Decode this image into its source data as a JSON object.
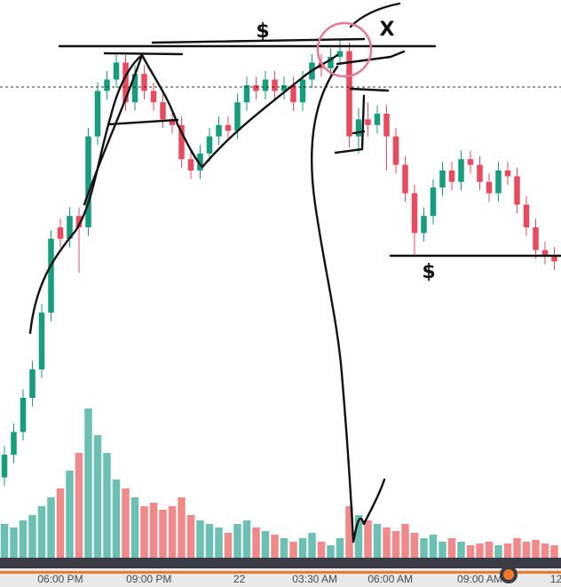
{
  "chart_data": {
    "type": "candlestick",
    "categories": [
      null,
      null,
      null,
      null,
      null,
      null,
      null,
      null,
      null,
      null,
      null,
      null,
      null,
      null,
      null,
      null,
      null,
      null,
      null,
      null,
      null,
      null,
      null,
      null,
      null,
      null,
      null,
      null,
      null,
      null,
      null,
      null,
      null,
      null,
      null,
      null,
      null,
      null,
      null,
      null,
      null,
      null,
      null,
      null,
      null,
      null,
      null,
      null,
      null,
      null,
      null,
      null,
      null,
      null,
      null,
      null,
      null,
      null,
      null,
      null
    ],
    "ohlc": [
      [
        16,
        21.5,
        14.5,
        20
      ],
      [
        20,
        25.5,
        18.5,
        24
      ],
      [
        24,
        31.5,
        22.5,
        30
      ],
      [
        30,
        36.5,
        28.5,
        35
      ],
      [
        35,
        46.5,
        33.5,
        45
      ],
      [
        45,
        59.5,
        43.5,
        58
      ],
      [
        60,
        61.5,
        56.5,
        58
      ],
      [
        58,
        63.5,
        56.5,
        62
      ],
      [
        62,
        63.5,
        52,
        60
      ],
      [
        60,
        77.5,
        58.5,
        76
      ],
      [
        76,
        85.5,
        74.5,
        84
      ],
      [
        84,
        87.5,
        82.5,
        86
      ],
      [
        86,
        90.5,
        84.5,
        89
      ],
      [
        89,
        90.5,
        80.5,
        82
      ],
      [
        82,
        88.5,
        80.5,
        87
      ],
      [
        87,
        88.5,
        82.5,
        84
      ],
      [
        84,
        85.5,
        80.5,
        82
      ],
      [
        82,
        83.5,
        77.5,
        79
      ],
      [
        79,
        80.5,
        76.5,
        78
      ],
      [
        78,
        79.5,
        70.5,
        72
      ],
      [
        72,
        73.5,
        68.5,
        70
      ],
      [
        70,
        74.5,
        68.5,
        73
      ],
      [
        73,
        77.5,
        71.5,
        76
      ],
      [
        76,
        79.5,
        74.5,
        78
      ],
      [
        78,
        79.5,
        75.5,
        77
      ],
      [
        77,
        83.5,
        75.5,
        82
      ],
      [
        82,
        86.5,
        80.5,
        85
      ],
      [
        85,
        86.5,
        82.5,
        84
      ],
      [
        84,
        87.5,
        82.5,
        86
      ],
      [
        86,
        87.5,
        82.5,
        84
      ],
      [
        84,
        86.5,
        82.5,
        85
      ],
      [
        85,
        86.5,
        80.5,
        82
      ],
      [
        82,
        87.5,
        80.5,
        86
      ],
      [
        86,
        90.5,
        84.5,
        89
      ],
      [
        89,
        90.5,
        86.5,
        88
      ],
      [
        88,
        91.5,
        86.5,
        90
      ],
      [
        90,
        93,
        88.5,
        91
      ],
      [
        91,
        92.5,
        74,
        76
      ],
      [
        76,
        81,
        73,
        79
      ],
      [
        79,
        82,
        76,
        78
      ],
      [
        78,
        81.5,
        76.5,
        80
      ],
      [
        80,
        81.5,
        70,
        76
      ],
      [
        76,
        77.5,
        69.5,
        71
      ],
      [
        71,
        72.5,
        64.5,
        66
      ],
      [
        66,
        67.5,
        55,
        59
      ],
      [
        59,
        63.5,
        57.5,
        62
      ],
      [
        62,
        68.5,
        60.5,
        67
      ],
      [
        67,
        71.5,
        65.5,
        70
      ],
      [
        70,
        71.5,
        66.5,
        68
      ],
      [
        68,
        73.5,
        66.5,
        72
      ],
      [
        72,
        73.5,
        69.5,
        71
      ],
      [
        71,
        72.5,
        66.5,
        68
      ],
      [
        68,
        69.5,
        64.5,
        66
      ],
      [
        66,
        71.5,
        64.5,
        70
      ],
      [
        70,
        71.5,
        67.5,
        69
      ],
      [
        69,
        70.5,
        62.5,
        64
      ],
      [
        64,
        65.5,
        58.5,
        60
      ],
      [
        60,
        61.5,
        54.5,
        56
      ],
      [
        56,
        57.5,
        53.5,
        55
      ],
      [
        55,
        56.5,
        52.5,
        54
      ]
    ],
    "volume": [
      20,
      18,
      22,
      25,
      30,
      35,
      40,
      50,
      60,
      85,
      70,
      60,
      45,
      40,
      35,
      30,
      32,
      28,
      30,
      35,
      25,
      22,
      20,
      18,
      15,
      20,
      22,
      18,
      16,
      14,
      12,
      10,
      12,
      15,
      10,
      8,
      12,
      30,
      25,
      22,
      20,
      18,
      16,
      20,
      15,
      12,
      14,
      10,
      12,
      10,
      8,
      9,
      10,
      8,
      9,
      12,
      10,
      11,
      9,
      8
    ],
    "up_color": "#179c7d",
    "down_color": "#e84a5f",
    "volume_up_color": "#6cc0b3",
    "volume_down_color": "#f08a8a",
    "ylim": [
      0,
      100
    ],
    "volume_ylim": [
      0,
      100
    ],
    "xticks": [
      {
        "value": 6,
        "label": "06:00 PM"
      },
      {
        "value": 15.5,
        "label": "09:00 PM"
      },
      {
        "value": 25.2,
        "label": "22"
      },
      {
        "value": 33.3,
        "label": "03:30 AM"
      },
      {
        "value": 41.4,
        "label": "06:00 AM"
      },
      {
        "value": 51,
        "label": "09:00 AM"
      },
      {
        "value": 59.2,
        "label": "12"
      }
    ],
    "annotations": [
      "$",
      "X",
      "$"
    ]
  }
}
